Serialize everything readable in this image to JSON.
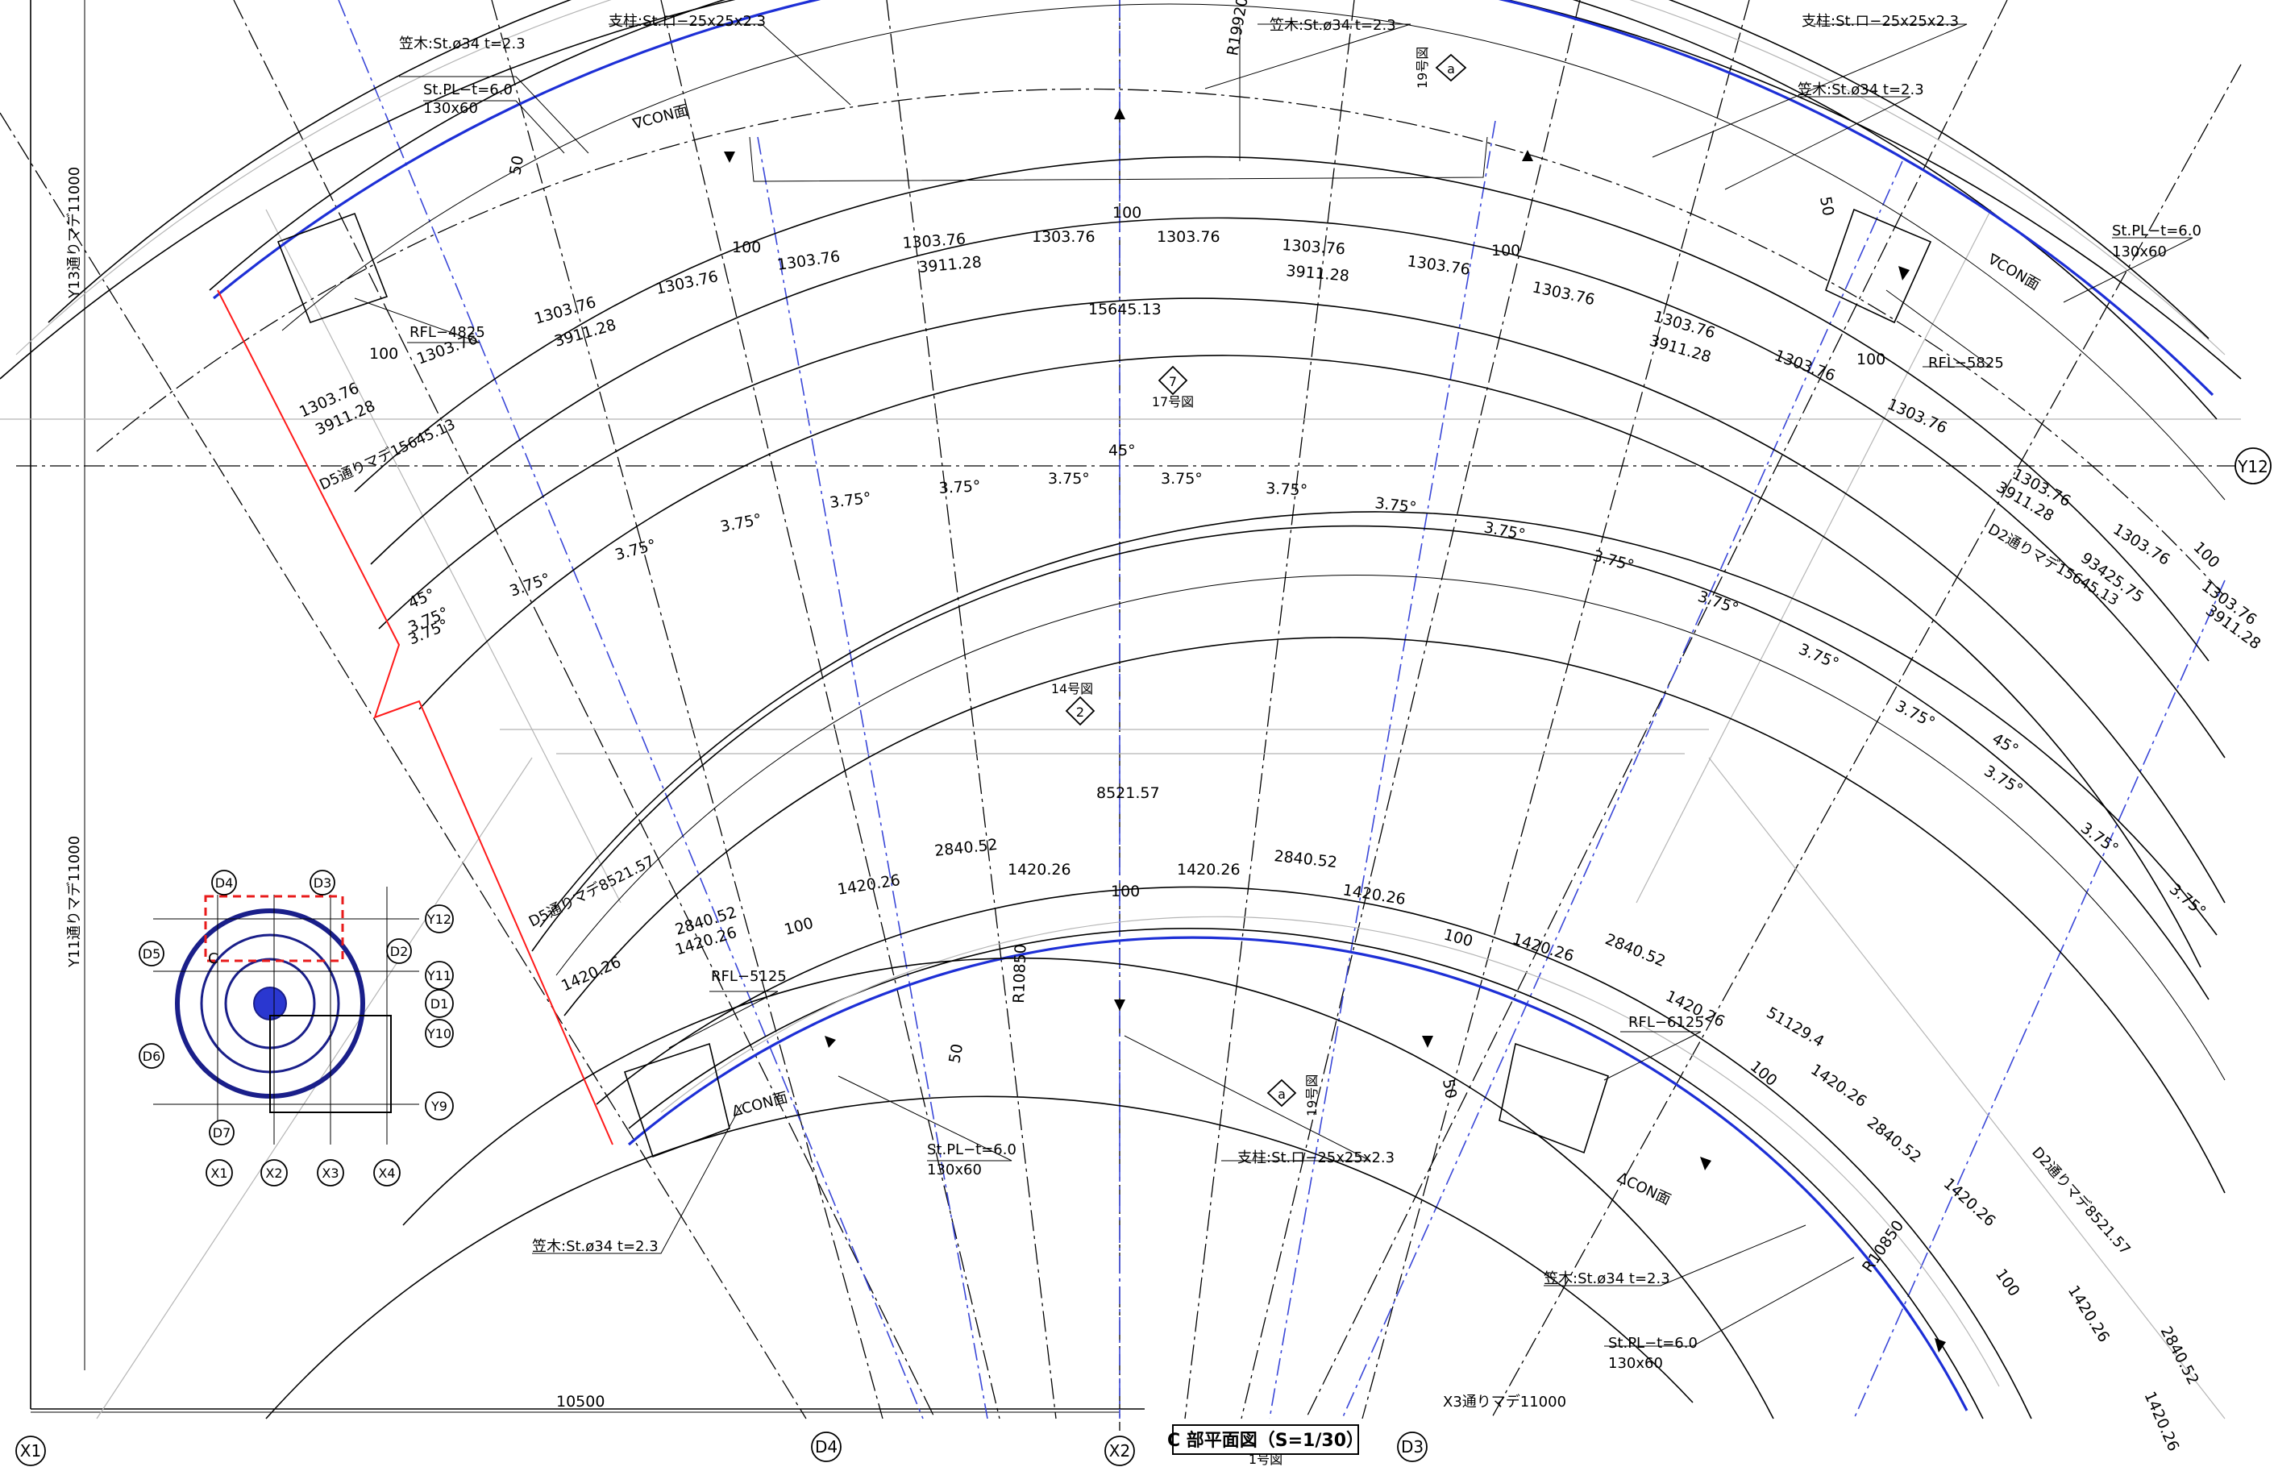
{
  "drawing": {
    "title": "C 部平面図（S=1/30）",
    "title_ref": "1号図",
    "radius_outer": "R19920",
    "radius_inner_a": "R10850",
    "radius_inner_b": "R10850"
  },
  "grid_labels": {
    "x1": "X1",
    "x2": "X2",
    "d4": "D4",
    "d3": "D3",
    "y12": "Y12"
  },
  "side_dims": {
    "y13": "Y13通りマデ11000",
    "y11": "Y11通りマデ11000",
    "bottom_left": "10500",
    "bottom_x3": "X3通りマデ11000"
  },
  "section_refs": {
    "ref17_label": "17号図",
    "ref17_num": "7",
    "ref14_label": "14号図",
    "ref14_num": "2",
    "ref19_top_label": "19号図",
    "ref19_top_num": "a",
    "ref19_bot_label": "19号図",
    "ref19_bot_num": "a"
  },
  "callouts": {
    "kasagi_top1": "笠木:St.ø34 t=2.3",
    "shichu_top1": "支柱:St.ロ−25x25x2.3",
    "kasagi_top2": "笠木:St.ø34 t=2.3",
    "shichu_top2": "支柱:St.ロ−25x25x2.3",
    "kasagi_top3": "笠木:St.ø34 t=2.3",
    "stpl_tl": "St.PL−t=6.0",
    "stpl_tl_size": "130x60",
    "stpl_tr": "St.PL−t=6.0",
    "stpl_tr_size": "130x60",
    "con_top_l": "∇CON面",
    "con_top_r": "∇CON面",
    "rfl_4825": "RFL−4825",
    "rfl_5825": "RFL−5825",
    "rfl_5125": "RFL−5125",
    "rfl_6125": "RFL−6125",
    "con_bot_l": "ΔCON面",
    "con_bot_r": "ΔCON面",
    "stpl_bl": "St.PL−t=6.0",
    "stpl_bl_size": "130x60",
    "shichu_bot": "支柱:St.ロ−25x25x2.3",
    "kasagi_bot_l": "笠木:St.ø34 t=2.3",
    "kasagi_bot_r": "笠木:St.ø34 t=2.3",
    "stpl_br": "St.PL−t=6.0",
    "stpl_br_size": "130x60"
  },
  "upper_dims": {
    "seg": "1303.76",
    "span": "3911.28",
    "total": "15645.13",
    "d5": "D5通りマデ15645.13",
    "d2": "D2通りマデ15645.13",
    "d2b": "93425.75",
    "gap": "100",
    "fifty": "50"
  },
  "angle_dims": {
    "step": "3.75°",
    "total": "45°"
  },
  "lower_dims": {
    "seg": "1420.26",
    "span": "2840.52",
    "total": "8521.57",
    "d5": "D5通りマデ8521.57",
    "d2": "D2通りマデ8521.57",
    "big": "51129.4"
  },
  "keyplan": {
    "d4": "D4",
    "d3": "D3",
    "d5": "D5",
    "d2": "D2",
    "d6": "D6",
    "d7": "D7",
    "c": "C",
    "y12": "Y12",
    "y11": "Y11",
    "d1": "D1",
    "y10": "Y10",
    "y9": "Y9",
    "x1": "X1",
    "x2": "X2",
    "x3": "X3",
    "x4": "X4"
  }
}
